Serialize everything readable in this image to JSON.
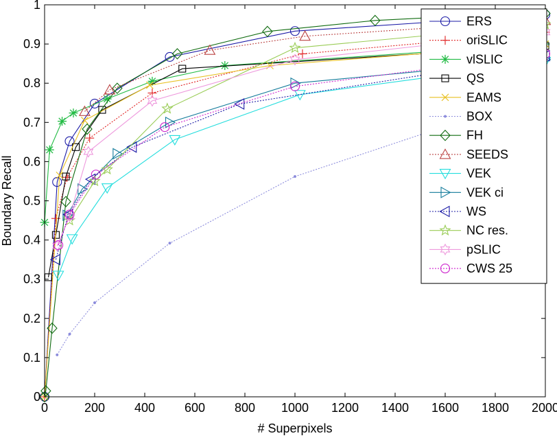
{
  "chart_data": {
    "type": "line",
    "title": "",
    "xlabel": "# Superpixels",
    "ylabel": "Boundary Recall",
    "xlim": [
      0,
      2000
    ],
    "ylim": [
      0,
      1
    ],
    "xticks": [
      0,
      200,
      400,
      600,
      800,
      1000,
      1200,
      1400,
      1600,
      1800,
      2000
    ],
    "yticks": [
      0,
      0.1,
      0.2,
      0.3,
      0.4,
      0.5,
      0.6,
      0.7,
      0.8,
      0.9,
      1
    ],
    "xtick_labels": [
      "0",
      "200",
      "400",
      "600",
      "800",
      "1000",
      "1200",
      "1400",
      "1600",
      "1800",
      "2000"
    ],
    "ytick_labels": [
      "0",
      "0.1",
      "0.2",
      "0.3",
      "0.4",
      "0.5",
      "0.6",
      "0.7",
      "0.8",
      "0.9",
      "1"
    ],
    "legend_position": "top-right",
    "series": [
      {
        "name": "ERS",
        "color": "#1a1aa6",
        "marker": "circle",
        "dash": "solid",
        "x": [
          0,
          50,
          100,
          200,
          500,
          1000,
          2000
        ],
        "y": [
          0.0,
          0.548,
          0.652,
          0.748,
          0.867,
          0.933,
          0.975
        ]
      },
      {
        "name": "oriSLIC",
        "color": "#e02020",
        "marker": "plus",
        "dash": "dotted",
        "x": [
          0,
          45,
          90,
          180,
          430,
          1030,
          2000
        ],
        "y": [
          0.0,
          0.455,
          0.56,
          0.66,
          0.775,
          0.875,
          0.93
        ]
      },
      {
        "name": "vlSLIC",
        "color": "#22bb44",
        "marker": "asterisk",
        "dash": "solid",
        "x": [
          0,
          20,
          70,
          115,
          250,
          430,
          720,
          2000
        ],
        "y": [
          0.445,
          0.63,
          0.703,
          0.724,
          0.76,
          0.805,
          0.845,
          0.9
        ]
      },
      {
        "name": "QS",
        "color": "#000000",
        "marker": "square",
        "dash": "solid",
        "x": [
          15,
          45,
          85,
          125,
          230,
          550,
          2000
        ],
        "y": [
          0.305,
          0.413,
          0.562,
          0.637,
          0.732,
          0.837,
          0.895
        ]
      },
      {
        "name": "EAMS",
        "color": "#e8c020",
        "marker": "x",
        "dash": "solid",
        "x": [
          0,
          60,
          160,
          420,
          900,
          2000
        ],
        "y": [
          0.0,
          0.565,
          0.705,
          0.795,
          0.845,
          0.9
        ]
      },
      {
        "name": "BOX",
        "color": "#8c8cdc",
        "marker": "dot",
        "dash": "dotted",
        "x": [
          50,
          100,
          200,
          500,
          1000,
          2000
        ],
        "y": [
          0.107,
          0.16,
          0.24,
          0.392,
          0.562,
          0.775
        ]
      },
      {
        "name": "FH",
        "color": "#0f6b0f",
        "marker": "diamond",
        "dash": "solid",
        "x": [
          0,
          5,
          30,
          85,
          170,
          290,
          530,
          890,
          1320,
          1780,
          2000
        ],
        "y": [
          0.0,
          0.015,
          0.175,
          0.498,
          0.683,
          0.787,
          0.875,
          0.932,
          0.96,
          0.975,
          0.978
        ]
      },
      {
        "name": "SEEDS",
        "color": "#bb4444",
        "marker": "triangle-up",
        "dash": "dotted",
        "x": [
          160,
          260,
          660,
          1040,
          2000
        ],
        "y": [
          0.728,
          0.783,
          0.884,
          0.92,
          0.96
        ]
      },
      {
        "name": "VEK",
        "color": "#22dddd",
        "marker": "triangle-down",
        "dash": "solid",
        "x": [
          55,
          110,
          250,
          520,
          1020,
          2000
        ],
        "y": [
          0.31,
          0.403,
          0.533,
          0.656,
          0.771,
          0.855
        ]
      },
      {
        "name": "VEK ci",
        "color": "#117a9a",
        "marker": "triangle-right",
        "dash": "solid",
        "x": [
          90,
          150,
          290,
          500,
          1000,
          2000
        ],
        "y": [
          0.463,
          0.53,
          0.62,
          0.7,
          0.8,
          0.86
        ]
      },
      {
        "name": "WS",
        "color": "#1a1aa6",
        "marker": "triangle-left",
        "dash": "dotted",
        "x": [
          45,
          95,
          185,
          350,
          780,
          2000
        ],
        "y": [
          0.35,
          0.465,
          0.555,
          0.637,
          0.747,
          0.87
        ]
      },
      {
        "name": "NC res.",
        "color": "#99cc55",
        "marker": "star",
        "dash": "solid",
        "x": [
          100,
          200,
          250,
          490,
          1000,
          2000
        ],
        "y": [
          0.45,
          0.55,
          0.58,
          0.735,
          0.89,
          0.95
        ]
      },
      {
        "name": "pSLIC",
        "color": "#ee99dd",
        "marker": "hexagram",
        "dash": "solid",
        "x": [
          50,
          100,
          175,
          430,
          1000,
          2000
        ],
        "y": [
          0.385,
          0.46,
          0.625,
          0.755,
          0.86,
          0.93
        ]
      },
      {
        "name": "CWS 25",
        "color": "#cc22cc",
        "marker": "circle",
        "dash": "dotted",
        "x": [
          55,
          100,
          205,
          480,
          1000,
          2000
        ],
        "y": [
          0.387,
          0.465,
          0.567,
          0.688,
          0.792,
          0.875
        ]
      }
    ]
  }
}
